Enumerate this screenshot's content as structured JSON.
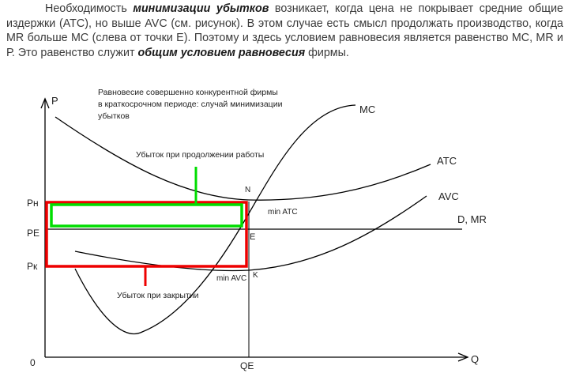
{
  "paragraph": {
    "t1": "Необходимость ",
    "b1": "минимизации убытков",
    "t2": " возникает, когда цена не покрывает средние общие издержки (АТС), но выше AVC (см. рисунок). В этом случае есть смысл продолжать производство, когда MR больше МС (слева от точки Е). Поэтому и здесь условием равновесия является равенство МС, MR и Р. Это равенство служит ",
    "b2": "общим условием равновесия",
    "t3": " фирмы."
  },
  "figure": {
    "caption": [
      "Равновесие совершенно конкурентной фирмы",
      "в краткосрочном периоде: случай минимизации",
      "убытков"
    ],
    "axis_p": "P",
    "axis_q": "Q",
    "origin": "0",
    "price_labels": {
      "pn": "Pн",
      "pe": "PE",
      "pk": "Pк"
    },
    "qe": "QE",
    "curve_labels": {
      "mc": "MC",
      "atc": "ATC",
      "avc": "AVC",
      "d": "D, MR"
    },
    "point_labels": {
      "n": "N",
      "e": "E",
      "k": "K",
      "min_atc": "min ATC",
      "min_avc": "min AVC"
    },
    "loss_continue": "Убыток при продолжении работы",
    "loss_shutdown": "Убыток при закрытии",
    "colors": {
      "loss_continue": "#00dd00",
      "loss_shutdown": "#ee0000",
      "curves": "#000000"
    }
  }
}
